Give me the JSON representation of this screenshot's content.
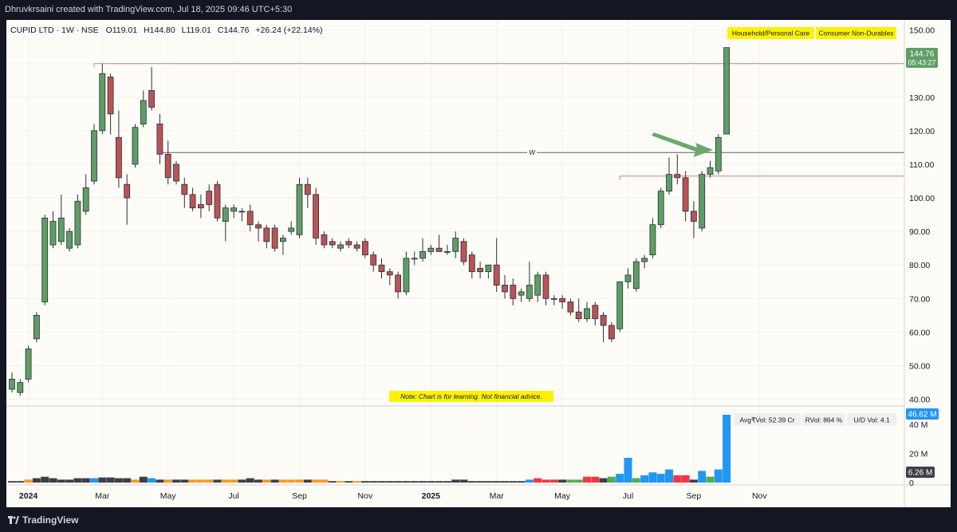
{
  "attribution": "Dhruvkrsaini created with TradingView.com, Jul 18, 2025 09:46 UTC+5:30",
  "brand": "TradingView",
  "legend": {
    "symbol": "CUPID LTD · 1W · NSE",
    "open_label": "O",
    "open": "119.01",
    "high_label": "H",
    "high": "144.80",
    "low_label": "L",
    "low": "119.01",
    "close_label": "C",
    "close": "144.76",
    "change": "+26.24 (+22.14%)"
  },
  "badges": [
    "Household/Personal Care",
    "Consumer Non-Durables"
  ],
  "note": "Note: Chart is for learning. Not financial advice.",
  "price_tag": {
    "value": "144.76",
    "countdown": "05:43:27"
  },
  "level_label": "W",
  "volume_stats": [
    "Avg₹Vol: 52.39 Cr",
    "RVol: 864 %",
    "U/D Vol: 4.1"
  ],
  "volume_tag": "46.62 M",
  "volume_tag2": "6.26 M",
  "colors": {
    "up": "#5e9e65",
    "down": "#b95454",
    "vol_blue": "#2196f3",
    "vol_black": "#3d3f48",
    "vol_orange": "#f7981d",
    "vol_green": "#4caf50",
    "vol_red": "#f23645",
    "resistance": "#c98383",
    "support_line": "#5d5f66",
    "badge": "#fff200",
    "arrow": "#6aa96e"
  },
  "chart_data": {
    "type": "candlestick",
    "x_tick_labels": [
      "2024",
      "Mar",
      "May",
      "Jul",
      "Sep",
      "Nov",
      "2025",
      "Mar",
      "May",
      "Jul",
      "Sep",
      "Nov"
    ],
    "x_tick_bar_index": [
      2,
      11,
      19,
      27,
      35,
      43,
      51,
      59,
      67,
      75,
      83,
      91
    ],
    "y_ticks": [
      40,
      50,
      60,
      70,
      80,
      90,
      100,
      110,
      120,
      130,
      140,
      150
    ],
    "ylim": [
      38,
      153
    ],
    "volume_ticks": [
      {
        "label": "40 M",
        "value": 40
      },
      {
        "label": "20 M",
        "value": 20
      },
      {
        "label": "0",
        "value": 0
      }
    ],
    "volume_max": 46.62,
    "horizontal_levels": [
      {
        "value": 140,
        "from_bar": 10,
        "style": "resistance"
      },
      {
        "value": 113.5,
        "from_bar": 18,
        "style": "support_line",
        "label": "W"
      },
      {
        "value": 106.5,
        "from_bar": 74,
        "style": "resistance"
      }
    ],
    "candles": [
      [
        43,
        48,
        42,
        46,
        1,
        "vol_black"
      ],
      [
        42,
        46,
        41,
        45,
        1,
        "vol_black"
      ],
      [
        46,
        56,
        45,
        55,
        2,
        "vol_orange"
      ],
      [
        58,
        66,
        57,
        65,
        3,
        "vol_black"
      ],
      [
        69,
        95,
        68,
        94,
        4,
        "vol_black"
      ],
      [
        86,
        96,
        85,
        93,
        3,
        "vol_black"
      ],
      [
        87,
        101,
        86,
        94,
        2,
        "vol_black"
      ],
      [
        85,
        91,
        84,
        90,
        2,
        "vol_black"
      ],
      [
        86,
        101,
        85,
        99,
        3,
        "vol_black"
      ],
      [
        96,
        107,
        95,
        103,
        3,
        "vol_black"
      ],
      [
        105,
        122,
        104,
        120,
        3,
        "vol_blue"
      ],
      [
        120,
        140,
        119,
        137,
        3.5,
        "vol_black"
      ],
      [
        136,
        137,
        119,
        125,
        3.5,
        "vol_black"
      ],
      [
        118,
        126,
        103,
        106,
        3,
        "vol_black"
      ],
      [
        104,
        107,
        92,
        100,
        3,
        "vol_black"
      ],
      [
        110,
        122,
        109,
        121,
        2,
        "vol_orange"
      ],
      [
        122,
        132,
        121,
        129,
        4,
        "vol_black"
      ],
      [
        132,
        139,
        126,
        127,
        3,
        "vol_blue"
      ],
      [
        122,
        125,
        110,
        113,
        2,
        "vol_black"
      ],
      [
        113,
        117,
        104,
        106,
        2,
        "vol_orange"
      ],
      [
        110,
        111,
        104,
        105,
        2,
        "vol_black"
      ],
      [
        104,
        106,
        97,
        101,
        2,
        "vol_black"
      ],
      [
        101,
        103,
        96,
        97,
        2,
        "vol_orange"
      ],
      [
        98,
        101,
        94,
        97,
        2,
        "vol_orange"
      ],
      [
        102,
        104,
        96,
        98,
        2,
        "vol_orange"
      ],
      [
        104,
        105,
        93,
        94,
        2,
        "vol_black"
      ],
      [
        93,
        98,
        87,
        97,
        2,
        "vol_orange"
      ],
      [
        96,
        98,
        94,
        97,
        2,
        "vol_orange"
      ],
      [
        96,
        97,
        93,
        96,
        2,
        "vol_black"
      ],
      [
        96,
        98,
        90,
        92,
        3,
        "vol_black"
      ],
      [
        92,
        93,
        87,
        91,
        2,
        "vol_black"
      ],
      [
        91,
        92,
        85,
        87,
        2,
        "vol_orange"
      ],
      [
        91,
        92,
        84,
        85,
        2,
        "vol_black"
      ],
      [
        87,
        89,
        83,
        88,
        2,
        "vol_orange"
      ],
      [
        90,
        93,
        89,
        91,
        2,
        "vol_orange"
      ],
      [
        89,
        106,
        88,
        104,
        2,
        "vol_orange"
      ],
      [
        104,
        106,
        97,
        101,
        2,
        "vol_black"
      ],
      [
        101,
        103,
        86,
        88,
        2,
        "vol_orange"
      ],
      [
        89,
        90,
        85,
        86,
        2,
        "vol_orange"
      ],
      [
        87,
        88,
        85,
        86,
        1,
        "vol_black"
      ],
      [
        85,
        87,
        84,
        86,
        1,
        "vol_orange"
      ],
      [
        87,
        88,
        85,
        86,
        1,
        "vol_black"
      ],
      [
        86,
        87,
        84,
        85,
        1,
        "vol_orange"
      ],
      [
        87,
        88,
        82,
        83,
        1,
        "vol_black"
      ],
      [
        83,
        84,
        78,
        80,
        1,
        "vol_black"
      ],
      [
        80,
        82,
        76,
        78,
        1,
        "vol_black"
      ],
      [
        78,
        79,
        74,
        77,
        1,
        "vol_black"
      ],
      [
        77,
        78,
        70,
        72,
        1,
        "vol_black"
      ],
      [
        72,
        84,
        71,
        82,
        1,
        "vol_black"
      ],
      [
        82,
        84,
        80,
        82,
        1,
        "vol_black"
      ],
      [
        82,
        88,
        81,
        84,
        1,
        "vol_black"
      ],
      [
        84,
        86,
        83,
        85,
        1,
        "vol_black"
      ],
      [
        85,
        89,
        84,
        84,
        1,
        "vol_black"
      ],
      [
        84,
        86,
        83,
        84,
        1,
        "vol_black"
      ],
      [
        84,
        90,
        82,
        88,
        2,
        "vol_black"
      ],
      [
        87,
        88,
        80,
        81,
        2,
        "vol_black"
      ],
      [
        83,
        84,
        76,
        78,
        1,
        "vol_black"
      ],
      [
        79,
        81,
        76,
        78,
        1,
        "vol_black"
      ],
      [
        78,
        80,
        76,
        80,
        1,
        "vol_black"
      ],
      [
        80,
        88,
        72,
        74,
        1,
        "vol_black"
      ],
      [
        74,
        77,
        70,
        72,
        1,
        "vol_black"
      ],
      [
        74,
        76,
        68,
        70,
        1,
        "vol_black"
      ],
      [
        71,
        73,
        69,
        72,
        1,
        "vol_black"
      ],
      [
        70,
        81,
        69,
        74,
        2,
        "vol_blue"
      ],
      [
        71,
        78,
        69,
        77,
        3,
        "vol_red"
      ],
      [
        77,
        78,
        68,
        70,
        2,
        "vol_red"
      ],
      [
        70,
        71,
        68,
        70,
        2,
        "vol_red"
      ],
      [
        70,
        71,
        67,
        69,
        2,
        "vol_black"
      ],
      [
        69,
        70,
        65,
        66,
        2,
        "vol_green"
      ],
      [
        66,
        70,
        63,
        64,
        2,
        "vol_green"
      ],
      [
        64,
        69,
        63,
        67,
        4,
        "vol_red"
      ],
      [
        68,
        69,
        62,
        64,
        4,
        "vol_red"
      ],
      [
        65,
        66,
        57,
        62,
        3,
        "vol_black"
      ],
      [
        62,
        63,
        57,
        58,
        4,
        "vol_green"
      ],
      [
        61,
        75,
        60,
        75,
        6,
        "vol_blue"
      ],
      [
        75,
        79,
        73,
        77,
        17,
        "vol_blue"
      ],
      [
        73,
        82,
        72,
        81,
        3,
        "vol_green"
      ],
      [
        81,
        83,
        79,
        82,
        5,
        "vol_blue"
      ],
      [
        83,
        94,
        82,
        92,
        7,
        "vol_blue"
      ],
      [
        92,
        103,
        91,
        102,
        6,
        "vol_blue"
      ],
      [
        102,
        112,
        101,
        107,
        9,
        "vol_blue"
      ],
      [
        107,
        113,
        104,
        106,
        5,
        "vol_red"
      ],
      [
        106,
        108,
        93,
        96,
        5,
        "vol_red"
      ],
      [
        96,
        99,
        88,
        93,
        2,
        "vol_black"
      ],
      [
        91,
        108,
        90,
        107,
        8,
        "vol_blue"
      ],
      [
        107,
        111,
        106,
        109,
        4,
        "vol_green"
      ],
      [
        108,
        119,
        107,
        118,
        9,
        "vol_blue"
      ],
      [
        119,
        144.8,
        119,
        144.76,
        46.62,
        "vol_blue"
      ]
    ]
  }
}
